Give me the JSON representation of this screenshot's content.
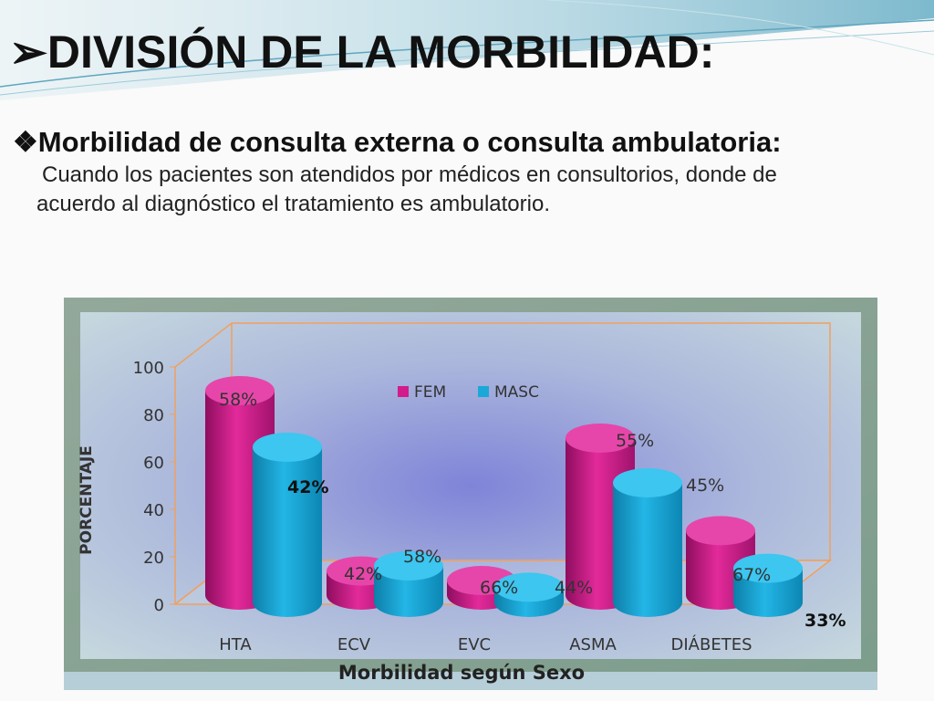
{
  "slide": {
    "title_marker": "➢",
    "title": "DIVISIÓN DE LA MORBILIDAD:",
    "bullet_marker": "❖",
    "bullet_title": "Morbilidad de consulta externa o consulta ambulatoria:",
    "body_line1": "Cuando los pacientes son atendidos por médicos en consultorios, donde de",
    "body_line2": "acuerdo al diagnóstico el tratamiento es ambulatorio."
  },
  "colors": {
    "fem": "#d21c8c",
    "masc": "#1aa8d8",
    "frame": "#f0a060"
  },
  "chart_data": {
    "type": "bar",
    "title": "",
    "xlabel": "Morbilidad según Sexo",
    "ylabel": "PORCENTAJE",
    "ylim": [
      0,
      100
    ],
    "yticks": [
      "0",
      "20",
      "40",
      "60",
      "80",
      "100"
    ],
    "categories": [
      "HTA",
      "ECV",
      "EVC",
      "ASMA",
      "DIÁBETES"
    ],
    "series": [
      {
        "name": "FEM",
        "values": [
          90,
          14,
          10,
          70,
          31
        ],
        "labels": [
          "58%",
          "42%",
          "66%",
          "55%",
          "67%"
        ]
      },
      {
        "name": "MASC",
        "values": [
          70,
          20,
          11,
          55,
          19
        ],
        "labels": [
          "42%",
          "58%",
          "44%",
          "45%",
          "33%"
        ]
      }
    ],
    "legend": "top-center",
    "grid": false
  }
}
